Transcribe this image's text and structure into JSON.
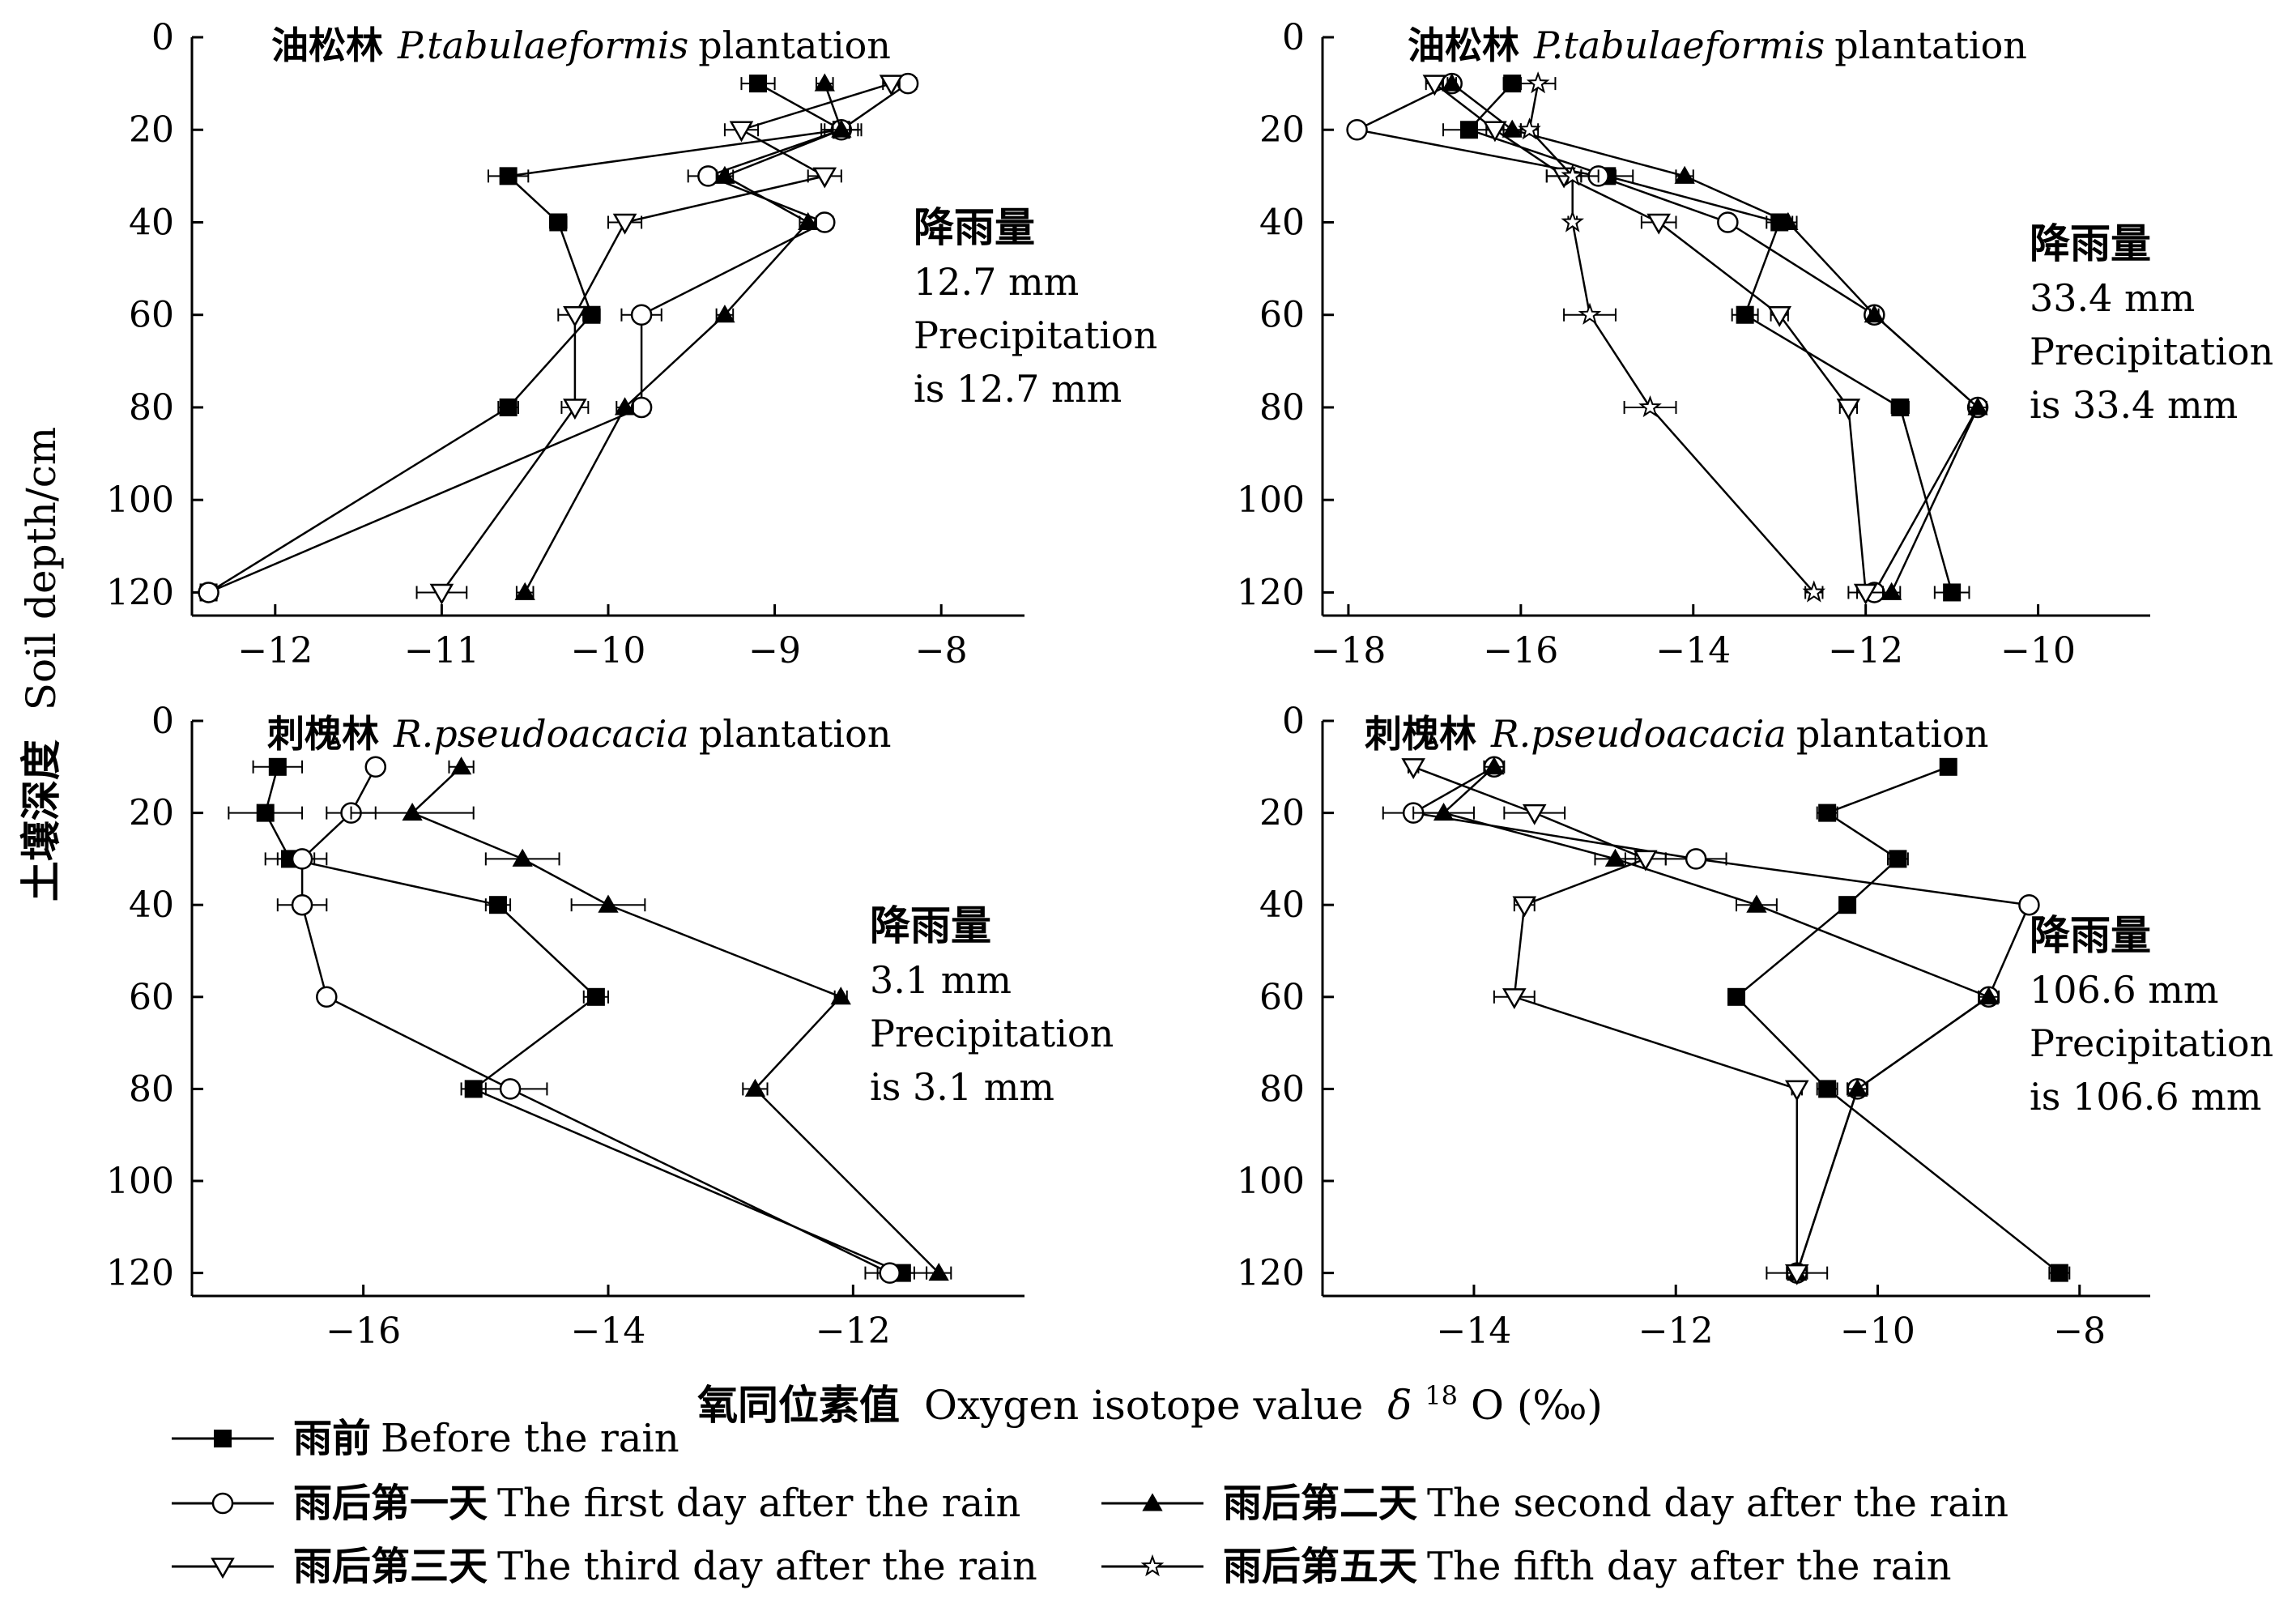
{
  "figure": {
    "ylabel_cn": "土壤深度",
    "ylabel_en": "Soil depth/cm",
    "xlabel_cn": "氧同位素值",
    "xlabel_en": "Oxygen isotope value",
    "xlabel_symbol": "δ",
    "xlabel_superscript": "18",
    "xlabel_tail": "O (‰)"
  },
  "legend": [
    {
      "cn": "雨前",
      "en": "Before the rain",
      "marker": "square-filled"
    },
    {
      "cn": "雨后第一天",
      "en": "The first day after the rain",
      "marker": "circle-open"
    },
    {
      "cn": "雨后第二天",
      "en": "The second day after the rain",
      "marker": "triangle-up-filled"
    },
    {
      "cn": "雨后第三天",
      "en": "The third day after the rain",
      "marker": "triangle-down-open"
    },
    {
      "cn": "雨后第五天",
      "en": "The fifth day after the rain",
      "marker": "star"
    }
  ],
  "chart_data": [
    {
      "type": "line",
      "title_cn": "油松林",
      "title_species": "P.tabulaeformis",
      "title_tail": "plantation",
      "annotation": [
        "降雨量",
        "12.7 mm",
        "Precipitation",
        "is 12.7 mm"
      ],
      "xlim": [
        -12.5,
        -7.5
      ],
      "xticks": [
        -12,
        -11,
        -10,
        -9,
        -8
      ],
      "xtick_labels": [
        "−12",
        "−11",
        "−10",
        "−9",
        "−8"
      ],
      "ylim": [
        0,
        125
      ],
      "yticks": [
        0,
        20,
        40,
        60,
        80,
        100,
        120
      ],
      "y_inverted": true,
      "depths": [
        10,
        20,
        30,
        40,
        60,
        80,
        120
      ],
      "series": [
        {
          "marker": "square-filled",
          "x": [
            -9.1,
            -8.6,
            -10.6,
            -10.3,
            -10.1,
            -10.6,
            -12.4
          ],
          "err": [
            0.1,
            0.1,
            0.12,
            0.05,
            0.05,
            0.06,
            0.05
          ]
        },
        {
          "marker": "circle-open",
          "x": [
            -8.2,
            -8.6,
            -9.4,
            -8.7,
            -9.8,
            -9.8,
            -12.4
          ],
          "err": [
            0.05,
            0.12,
            0.12,
            0.05,
            0.12,
            0.05,
            0.05
          ]
        },
        {
          "marker": "triangle-up-filled",
          "x": [
            -8.7,
            -8.6,
            -9.3,
            -8.8,
            -9.3,
            -9.9,
            -10.5
          ],
          "err": [
            0.05,
            0.05,
            0.05,
            0.05,
            0.05,
            0.05,
            0.05
          ]
        },
        {
          "marker": "triangle-down-open",
          "x": [
            -8.3,
            -9.2,
            -8.7,
            -9.9,
            -10.2,
            -10.2,
            -11.0
          ],
          "err": [
            0.05,
            0.1,
            0.1,
            0.1,
            0.1,
            0.08,
            0.15
          ]
        }
      ]
    },
    {
      "type": "line",
      "title_cn": "油松林",
      "title_species": "P.tabulaeformis",
      "title_tail": "plantation",
      "annotation": [
        "降雨量",
        "33.4 mm",
        "Precipitation",
        "is 33.4 mm"
      ],
      "xlim": [
        -18.3,
        -8.7
      ],
      "xticks": [
        -18,
        -16,
        -14,
        -12,
        -10
      ],
      "xtick_labels": [
        "−18",
        "−16",
        "−14",
        "−12",
        "−10"
      ],
      "ylim": [
        0,
        125
      ],
      "yticks": [
        0,
        20,
        40,
        60,
        80,
        100,
        120
      ],
      "y_inverted": true,
      "depths": [
        10,
        20,
        30,
        40,
        60,
        80,
        120
      ],
      "series": [
        {
          "marker": "square-filled",
          "x": [
            -16.1,
            -16.6,
            -15.0,
            -13.0,
            -13.4,
            -11.6,
            -11.0
          ],
          "err": [
            0.1,
            0.3,
            0.3,
            0.15,
            0.15,
            0.1,
            0.2
          ]
        },
        {
          "marker": "circle-open",
          "x": [
            -16.8,
            -17.9,
            -15.1,
            -13.6,
            -11.9,
            -10.7,
            -11.9
          ],
          "err": [
            0.05,
            0.05,
            0.2,
            0.05,
            0.05,
            0.1,
            0.2
          ]
        },
        {
          "marker": "triangle-up-filled",
          "x": [
            -16.8,
            -16.1,
            -14.1,
            -12.9,
            -11.9,
            -10.7,
            -11.7
          ],
          "err": [
            0.05,
            0.1,
            0.1,
            0.1,
            0.05,
            0.1,
            0.1
          ]
        },
        {
          "marker": "triangle-down-open",
          "x": [
            -17.0,
            -16.3,
            -15.5,
            -14.4,
            -13.0,
            -12.2,
            -12.0
          ],
          "err": [
            0.1,
            0.1,
            0.2,
            0.2,
            0.1,
            0.1,
            0.2
          ]
        },
        {
          "marker": "star",
          "x": [
            -15.8,
            -15.9,
            -15.4,
            -15.4,
            -15.2,
            -14.5,
            -12.6
          ],
          "err": [
            0.2,
            0.1,
            0.3,
            0.05,
            0.3,
            0.3,
            0.1
          ]
        }
      ]
    },
    {
      "type": "line",
      "title_cn": "刺槐林",
      "title_species": "R.pseudoacacia",
      "title_tail": "plantation",
      "annotation": [
        "降雨量",
        "3.1 mm",
        "Precipitation",
        "is 3.1 mm"
      ],
      "xlim": [
        -17.4,
        -10.6
      ],
      "xticks": [
        -16,
        -14,
        -12
      ],
      "xtick_labels": [
        "−16",
        "−14",
        "−12"
      ],
      "ylim": [
        0,
        125
      ],
      "yticks": [
        0,
        20,
        40,
        60,
        80,
        100,
        120
      ],
      "y_inverted": true,
      "depths": [
        10,
        20,
        30,
        40,
        60,
        80,
        120
      ],
      "series": [
        {
          "marker": "square-filled",
          "x": [
            -16.7,
            -16.8,
            -16.6,
            -14.9,
            -14.1,
            -15.1,
            -11.6
          ],
          "err": [
            0.2,
            0.3,
            0.2,
            0.1,
            0.1,
            0.1,
            0.2
          ]
        },
        {
          "marker": "circle-open",
          "x": [
            -15.9,
            -16.1,
            -16.5,
            -16.5,
            -16.3,
            -14.8,
            -11.7
          ],
          "err": [
            0.05,
            0.2,
            0.2,
            0.2,
            0.05,
            0.3,
            0.2
          ]
        },
        {
          "marker": "triangle-up-filled",
          "x": [
            -15.2,
            -15.6,
            -14.7,
            -14.0,
            -12.1,
            -12.8,
            -11.3
          ],
          "err": [
            0.1,
            0.5,
            0.3,
            0.3,
            0.05,
            0.1,
            0.1
          ]
        }
      ]
    },
    {
      "type": "line",
      "title_cn": "刺槐林",
      "title_species": "R.pseudoacacia",
      "title_tail": "plantation",
      "annotation": [
        "降雨量",
        "106.6 mm",
        "Precipitation",
        "is 106.6 mm"
      ],
      "xlim": [
        -15.5,
        -7.3
      ],
      "xticks": [
        -14,
        -12,
        -10,
        -8
      ],
      "xtick_labels": [
        "−14",
        "−12",
        "−10",
        "−8"
      ],
      "ylim": [
        0,
        125
      ],
      "yticks": [
        0,
        20,
        40,
        60,
        80,
        100,
        120
      ],
      "y_inverted": true,
      "depths": [
        10,
        20,
        30,
        40,
        60,
        80,
        120
      ],
      "series": [
        {
          "marker": "square-filled",
          "x": [
            -9.3,
            -10.5,
            -9.8,
            -10.3,
            -11.4,
            -10.5,
            -8.2
          ],
          "err": [
            0.05,
            0.1,
            0.1,
            0.05,
            0.05,
            0.1,
            0.1
          ]
        },
        {
          "marker": "circle-open",
          "x": [
            -13.8,
            -14.6,
            -11.8,
            -8.5,
            -8.9,
            -10.2,
            -10.8
          ],
          "err": [
            0.05,
            0.3,
            0.3,
            0.05,
            0.05,
            0.1,
            0.1
          ]
        },
        {
          "marker": "triangle-up-filled",
          "x": [
            -13.8,
            -14.3,
            -12.6,
            -11.2,
            -8.9,
            -10.2,
            -10.8
          ],
          "err": [
            0.1,
            0.3,
            0.2,
            0.2,
            0.1,
            0.1,
            0.1
          ]
        },
        {
          "marker": "triangle-down-open",
          "x": [
            -14.6,
            -13.4,
            -12.3,
            -13.5,
            -13.6,
            -10.8,
            -10.8
          ],
          "err": [
            0.05,
            0.3,
            0.2,
            0.1,
            0.2,
            0.05,
            0.3
          ]
        }
      ]
    }
  ]
}
